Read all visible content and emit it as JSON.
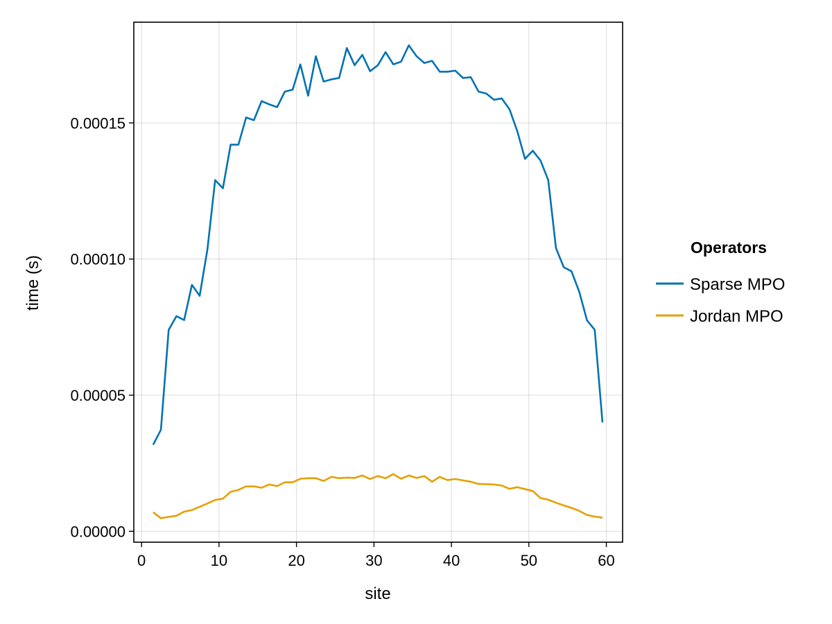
{
  "chart_data": {
    "type": "line",
    "title": "",
    "xlabel": "site",
    "ylabel": "time (s)",
    "xlim": [
      -1,
      62.1
    ],
    "ylim": [
      -4e-06,
      0.000187
    ],
    "grid": true,
    "xticks": [
      0,
      10,
      20,
      30,
      40,
      50,
      60
    ],
    "xtick_labels": [
      "0",
      "10",
      "20",
      "30",
      "40",
      "50",
      "60"
    ],
    "yticks": [
      0,
      5e-05,
      0.0001,
      0.00015
    ],
    "ytick_labels": [
      "0.00000",
      "0.00005",
      "0.00010",
      "0.00015"
    ],
    "legend": {
      "title": "Operators",
      "placement": "right"
    },
    "x": [
      1.5,
      2.5,
      3.5,
      4.5,
      5.5,
      6.5,
      7.5,
      8.5,
      9.5,
      10.5,
      11.5,
      12.5,
      13.5,
      14.5,
      15.5,
      16.5,
      17.5,
      18.5,
      19.5,
      20.5,
      21.5,
      22.5,
      23.5,
      24.5,
      25.5,
      26.5,
      27.5,
      28.5,
      29.5,
      30.5,
      31.5,
      32.5,
      33.5,
      34.5,
      35.5,
      36.5,
      37.5,
      38.5,
      39.5,
      40.5,
      41.5,
      42.5,
      43.5,
      44.5,
      45.5,
      46.5,
      47.5,
      48.5,
      49.5,
      50.5,
      51.5,
      52.5,
      53.5,
      54.5,
      55.5,
      56.5,
      57.5,
      58.5,
      59.5
    ],
    "series": [
      {
        "name": "Sparse MPO",
        "color": "#0072b2",
        "values": [
          3.18e-05,
          3.73e-05,
          7.4e-05,
          7.9e-05,
          7.76e-05,
          9.05e-05,
          8.65e-05,
          0.0001035,
          0.000129,
          0.000126,
          0.000142,
          0.000142,
          0.000152,
          0.000151,
          0.000158,
          0.0001568,
          0.0001558,
          0.0001615,
          0.0001622,
          0.0001715,
          0.00016,
          0.0001745,
          0.0001652,
          0.000166,
          0.0001665,
          0.0001775,
          0.0001712,
          0.000175,
          0.000169,
          0.0001712,
          0.000176,
          0.0001715,
          0.0001725,
          0.0001785,
          0.0001745,
          0.000172,
          0.0001728,
          0.0001688,
          0.0001688,
          0.0001692,
          0.0001665,
          0.0001668,
          0.0001615,
          0.0001608,
          0.0001585,
          0.000159,
          0.000155,
          0.000147,
          0.0001368,
          0.0001398,
          0.0001362,
          0.000129,
          0.000104,
          9.7e-05,
          9.55e-05,
          8.8e-05,
          7.75e-05,
          7.4e-05,
          4e-05
        ]
      },
      {
        "name": "Jordan MPO",
        "color": "#e69f00",
        "values": [
          7e-06,
          4.8e-06,
          5.3e-06,
          5.7e-06,
          7.2e-06,
          7.8e-06,
          9e-06,
          1.02e-05,
          1.15e-05,
          1.2e-05,
          1.45e-05,
          1.52e-05,
          1.65e-05,
          1.65e-05,
          1.6e-05,
          1.72e-05,
          1.66e-05,
          1.8e-05,
          1.8e-05,
          1.93e-05,
          1.95e-05,
          1.95e-05,
          1.85e-05,
          2e-05,
          1.95e-05,
          1.97e-05,
          1.96e-05,
          2.05e-05,
          1.92e-05,
          2.03e-05,
          1.95e-05,
          2.1e-05,
          1.93e-05,
          2.05e-05,
          1.96e-05,
          2.03e-05,
          1.82e-05,
          2e-05,
          1.88e-05,
          1.92e-05,
          1.87e-05,
          1.82e-05,
          1.74e-05,
          1.73e-05,
          1.72e-05,
          1.68e-05,
          1.56e-05,
          1.62e-05,
          1.55e-05,
          1.48e-05,
          1.22e-05,
          1.16e-05,
          1.05e-05,
          9.5e-06,
          8.6e-06,
          7.5e-06,
          6e-06,
          5.4e-06,
          5e-06
        ]
      }
    ]
  }
}
